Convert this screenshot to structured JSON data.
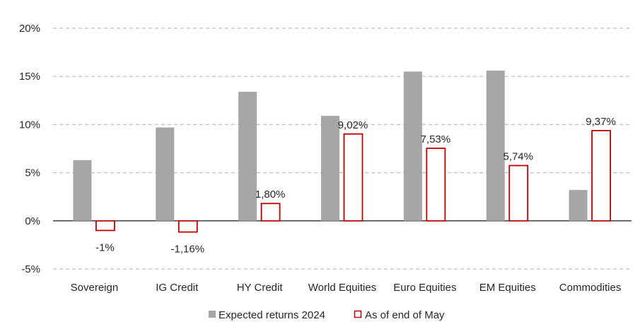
{
  "chart_data": {
    "type": "bar",
    "title": "",
    "xlabel": "",
    "ylabel": "",
    "ylim": [
      -5,
      20
    ],
    "yticks": [
      -5,
      0,
      5,
      10,
      15,
      20
    ],
    "ytick_labels": [
      "-5%",
      "0%",
      "5%",
      "10%",
      "15%",
      "20%"
    ],
    "grid": true,
    "legend_position": "bottom",
    "categories": [
      "Sovereign",
      "IG Credit",
      "HY Credit",
      "World Equities",
      "Euro Equities",
      "EM Equities",
      "Commodities"
    ],
    "series": [
      {
        "name": "Expected returns 2024",
        "color": "#a6a6a6",
        "style": "filled",
        "values": [
          6.3,
          9.7,
          13.4,
          10.9,
          15.5,
          15.6,
          3.2
        ],
        "data_labels": null
      },
      {
        "name": "As of end of May",
        "color": "#c00000",
        "style": "outline",
        "values": [
          -1.0,
          -1.16,
          1.8,
          9.02,
          7.53,
          5.74,
          9.37
        ],
        "data_labels": [
          "-1%",
          "-1,16%",
          "1,80%",
          "9,02%",
          "7,53%",
          "5,74%",
          "9,37%"
        ]
      }
    ]
  }
}
